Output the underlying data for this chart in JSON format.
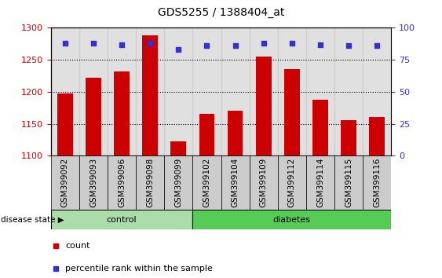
{
  "title": "GDS5255 / 1388404_at",
  "samples": [
    "GSM399092",
    "GSM399093",
    "GSM399096",
    "GSM399098",
    "GSM399099",
    "GSM399102",
    "GSM399104",
    "GSM399109",
    "GSM399112",
    "GSM399114",
    "GSM399115",
    "GSM399116"
  ],
  "counts": [
    1197,
    1222,
    1232,
    1288,
    1122,
    1165,
    1170,
    1255,
    1235,
    1188,
    1155,
    1160
  ],
  "percentile_ranks": [
    88,
    88,
    87,
    88,
    83,
    86,
    86,
    88,
    88,
    87,
    86,
    86
  ],
  "n_control": 5,
  "n_diabetes": 7,
  "ylim_left": [
    1100,
    1300
  ],
  "ylim_right": [
    0,
    100
  ],
  "yticks_left": [
    1100,
    1150,
    1200,
    1250,
    1300
  ],
  "yticks_right": [
    0,
    25,
    50,
    75,
    100
  ],
  "bar_color": "#cc0000",
  "dot_color": "#3333cc",
  "bar_width": 0.55,
  "control_color": "#aaddaa",
  "diabetes_color": "#55cc55",
  "label_bg": "#cccccc",
  "legend_count_label": "count",
  "legend_pct_label": "percentile rank within the sample",
  "disease_state_label": "disease state",
  "control_label": "control",
  "diabetes_label": "diabetes",
  "title_fontsize": 10,
  "axis_fontsize": 8,
  "label_fontsize": 7.5
}
